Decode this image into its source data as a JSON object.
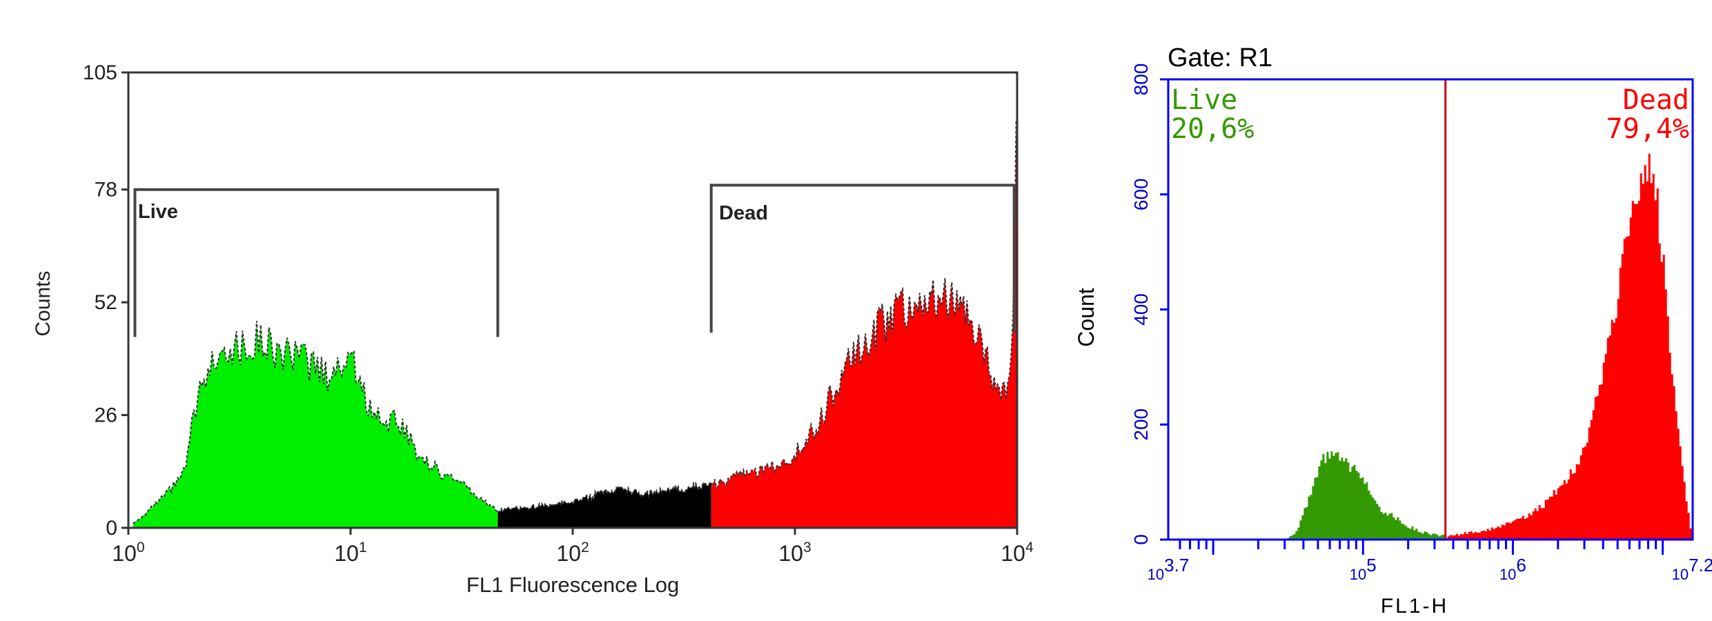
{
  "colors": {
    "live_left": "#00ee00",
    "dead_left": "#ff0000",
    "middle_left": "#000000",
    "bracket": "#444444",
    "frame_right": "#0000ff",
    "live_right": "#339900",
    "dead_right": "#ff0000",
    "gate_line": "#cc0000"
  },
  "chart_data": [
    {
      "type": "area",
      "title": "",
      "xlabel": "FL1 Fluorescence Log",
      "ylabel": "Counts",
      "x_scale": "log",
      "xlim": [
        1,
        10000
      ],
      "ylim": [
        0,
        105
      ],
      "yticks": [
        0,
        26,
        52,
        78,
        105
      ],
      "ytick_labels": [
        "0",
        "26",
        "52",
        "78",
        "105"
      ],
      "xticks": [
        1,
        10,
        100,
        1000,
        10000
      ],
      "xtick_labels": [
        {
          "base": "10",
          "exp": "0"
        },
        {
          "base": "10",
          "exp": "1"
        },
        {
          "base": "10",
          "exp": "2"
        },
        {
          "base": "10",
          "exp": "3"
        },
        {
          "base": "10",
          "exp": "4"
        }
      ],
      "gates": [
        {
          "name": "Live",
          "label": "Live",
          "x_range": [
            1.07,
            46
          ],
          "y_level": 78
        },
        {
          "name": "Dead",
          "label": "Dead",
          "x_range": [
            420,
            9700
          ],
          "y_level": 79
        }
      ],
      "series": [
        {
          "name": "Live",
          "color": "#00ee00",
          "x_range": [
            1.05,
            46
          ],
          "x": [
            1.05,
            1.3,
            1.5,
            1.8,
            2.0,
            2.3,
            2.6,
            3.0,
            3.5,
            4.0,
            4.5,
            5.5,
            6.5,
            8,
            10,
            12,
            14,
            17,
            20,
            25,
            30,
            37,
            46
          ],
          "y": [
            1,
            5,
            8,
            13,
            28,
            36,
            43,
            41,
            42,
            44,
            41,
            39,
            38,
            35,
            40,
            28,
            25,
            24,
            17,
            13,
            11,
            7,
            4
          ]
        },
        {
          "name": "",
          "color": "#000000",
          "x_range": [
            46,
            420
          ],
          "x": [
            46,
            70,
            100,
            150,
            200,
            300,
            420
          ],
          "y": [
            4,
            5,
            6,
            9,
            8,
            9,
            10
          ]
        },
        {
          "name": "Dead",
          "color": "#ff0000",
          "x_range": [
            420,
            10000
          ],
          "x": [
            420,
            550,
            700,
            900,
            1200,
            1600,
            2000,
            2500,
            3000,
            3500,
            4000,
            5000,
            6000,
            7000,
            8000,
            9000,
            9500,
            9900
          ],
          "y": [
            10,
            12,
            13,
            15,
            22,
            35,
            42,
            47,
            51,
            52,
            55,
            52,
            48,
            42,
            32,
            30,
            40,
            92
          ]
        }
      ]
    },
    {
      "type": "area",
      "title": "Gate: R1",
      "xlabel": "FL1-H",
      "ylabel": "Count",
      "x_scale": "log",
      "xlim": [
        3.7,
        7.2
      ],
      "ylim": [
        0,
        800
      ],
      "yticks": [
        0,
        200,
        400,
        600,
        800
      ],
      "ytick_labels": [
        "0",
        "200",
        "400",
        "600",
        "800"
      ],
      "xtick_labels": [
        {
          "base": "10",
          "exp": "3.7",
          "at": 3.7
        },
        {
          "base": "10",
          "exp": "5",
          "at": 5
        },
        {
          "base": "10",
          "exp": "6",
          "at": 6
        },
        {
          "base": "10",
          "exp": "7.2",
          "at": 7.2
        }
      ],
      "gate_divider": 5.55,
      "annotations": [
        {
          "name": "Live",
          "label": "Live",
          "value": "20,6%"
        },
        {
          "name": "Dead",
          "label": "Dead",
          "value": "79,4%"
        }
      ],
      "series": [
        {
          "name": "Live",
          "color": "#339900",
          "x": [
            4.48,
            4.55,
            4.62,
            4.68,
            4.73,
            4.8,
            4.86,
            4.92,
            4.98,
            5.05,
            5.12,
            5.2,
            5.3,
            5.4,
            5.5,
            5.55
          ],
          "y": [
            0,
            15,
            60,
            105,
            140,
            148,
            135,
            125,
            110,
            82,
            50,
            40,
            22,
            12,
            8,
            5
          ]
        },
        {
          "name": "Dead",
          "color": "#ff0000",
          "x": [
            5.55,
            5.7,
            5.85,
            6.0,
            6.1,
            6.2,
            6.3,
            6.4,
            6.5,
            6.6,
            6.7,
            6.78,
            6.84,
            6.9,
            6.95,
            7.0,
            7.05,
            7.1,
            7.15,
            7.18,
            7.2
          ],
          "y": [
            5,
            12,
            18,
            30,
            42,
            60,
            90,
            120,
            180,
            300,
            430,
            560,
            620,
            660,
            600,
            480,
            320,
            180,
            70,
            20,
            5
          ]
        }
      ]
    }
  ]
}
